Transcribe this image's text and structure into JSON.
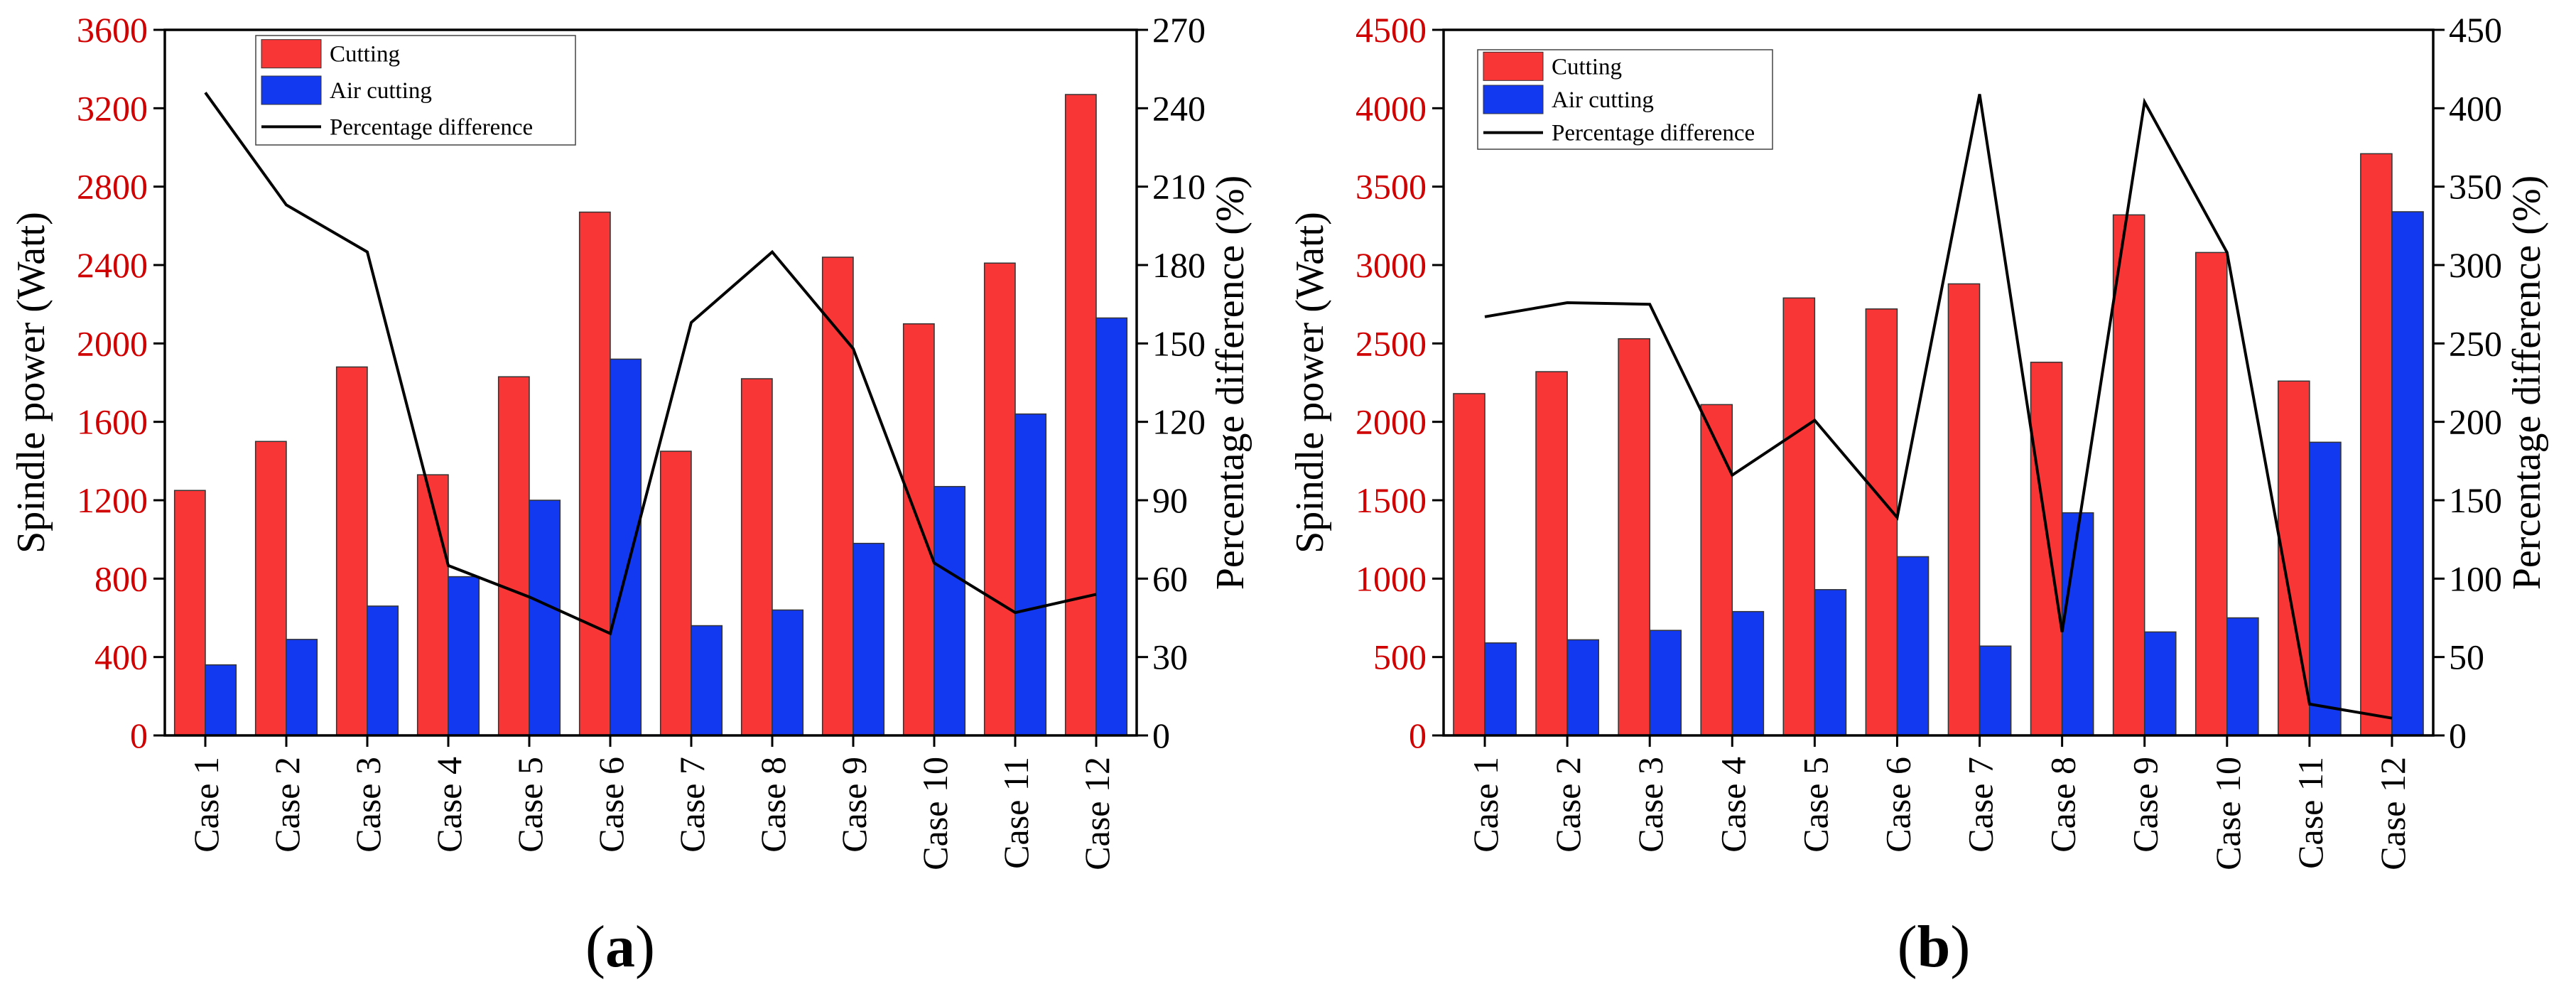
{
  "colors": {
    "cutting": "#f93636",
    "air_cutting": "#1238f0",
    "line": "#000000",
    "left_axis_text": "#d00000",
    "axis": "#000000"
  },
  "chart_data": [
    {
      "type": "bar",
      "panel_label": "a",
      "categories": [
        "Case 1",
        "Case 2",
        "Case 3",
        "Case 4",
        "Case 5",
        "Case 6",
        "Case 7",
        "Case 8",
        "Case 9",
        "Case 10",
        "Case 11",
        "Case 12"
      ],
      "series": [
        {
          "name": "Cutting",
          "type": "bar",
          "axis": "left",
          "values": [
            1250,
            1500,
            1880,
            1330,
            1830,
            2670,
            1450,
            1820,
            2440,
            2100,
            2410,
            3270
          ]
        },
        {
          "name": "Air cutting",
          "type": "bar",
          "axis": "left",
          "values": [
            360,
            490,
            660,
            810,
            1200,
            1920,
            560,
            640,
            980,
            1270,
            1640,
            2130
          ]
        },
        {
          "name": "Percentage difference",
          "type": "line",
          "axis": "right",
          "values": [
            246,
            203,
            185,
            65,
            53,
            39,
            158,
            185,
            148,
            66,
            47,
            54
          ]
        }
      ],
      "ylabel": "Spindle power (Watt)",
      "ylabel_right": "Percentage difference (%)",
      "ylim": [
        0,
        3600
      ],
      "yticks": [
        0,
        400,
        800,
        1200,
        1600,
        2000,
        2400,
        2800,
        3200,
        3600
      ],
      "ylim_right": [
        0,
        270
      ],
      "yticks_right": [
        0,
        30,
        60,
        90,
        120,
        150,
        180,
        210,
        240,
        270
      ],
      "legend_position": "top-left",
      "grid": false
    },
    {
      "type": "bar",
      "panel_label": "b",
      "categories": [
        "Case 1",
        "Case 2",
        "Case 3",
        "Case 4",
        "Case 5",
        "Case 6",
        "Case 7",
        "Case 8",
        "Case 9",
        "Case 10",
        "Case 11",
        "Case 12"
      ],
      "series": [
        {
          "name": "Cutting",
          "type": "bar",
          "axis": "left",
          "values": [
            2180,
            2320,
            2530,
            2110,
            2790,
            2720,
            2880,
            2380,
            3320,
            3080,
            2260,
            3710
          ]
        },
        {
          "name": "Air cutting",
          "type": "bar",
          "axis": "left",
          "values": [
            590,
            610,
            670,
            790,
            930,
            1140,
            570,
            1420,
            660,
            750,
            1870,
            3340
          ]
        },
        {
          "name": "Percentage difference",
          "type": "line",
          "axis": "right",
          "values": [
            267,
            276,
            275,
            166,
            201,
            139,
            409,
            66,
            404,
            308,
            20,
            11
          ]
        }
      ],
      "ylabel": "Spindle power (Watt)",
      "ylabel_right": "Percentage difference (%)",
      "ylim": [
        0,
        4500
      ],
      "yticks": [
        0,
        500,
        1000,
        1500,
        2000,
        2500,
        3000,
        3500,
        4000,
        4500
      ],
      "ylim_right": [
        0,
        450
      ],
      "yticks_right": [
        0,
        50,
        100,
        150,
        200,
        250,
        300,
        350,
        400,
        450
      ],
      "legend_position": "top-left",
      "grid": false
    }
  ]
}
